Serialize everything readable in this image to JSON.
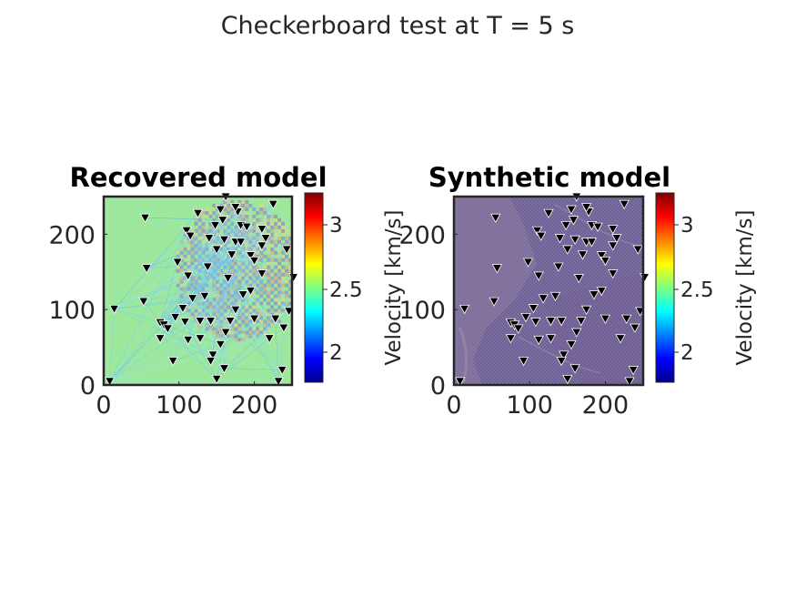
{
  "figure": {
    "suptitle": "Checkerboard test at T = 5 s"
  },
  "colorbar": {
    "colormap": "jet",
    "range": [
      1.75,
      3.2
    ],
    "ticks": [
      "2",
      "2.5",
      "3"
    ],
    "label": "Velocity [km/s]"
  },
  "station_marker": {
    "shape": "inverted-triangle",
    "fill": "#000000",
    "edge": "#ffffff"
  },
  "chart_data": [
    {
      "type": "heatmap",
      "title": "Recovered model",
      "xlim": [
        0,
        250
      ],
      "ylim": [
        0,
        250
      ],
      "xticks": [
        "0",
        "100",
        "200"
      ],
      "yticks": [
        "0",
        "100",
        "200"
      ],
      "background_velocity": 2.35,
      "stations": [
        [
          8,
          5
        ],
        [
          14,
          101
        ],
        [
          55,
          222
        ],
        [
          57,
          155
        ],
        [
          53,
          111
        ],
        [
          75,
          83
        ],
        [
          80,
          80
        ],
        [
          85,
          75
        ],
        [
          75,
          62
        ],
        [
          92,
          32
        ],
        [
          110,
          205
        ],
        [
          115,
          198
        ],
        [
          125,
          228
        ],
        [
          98,
          163
        ],
        [
          112,
          145
        ],
        [
          118,
          115
        ],
        [
          105,
          102
        ],
        [
          108,
          84
        ],
        [
          128,
          85
        ],
        [
          142,
          85
        ],
        [
          134,
          118
        ],
        [
          138,
          157
        ],
        [
          140,
          195
        ],
        [
          150,
          180
        ],
        [
          155,
          233
        ],
        [
          158,
          219
        ],
        [
          148,
          212
        ],
        [
          160,
          193
        ],
        [
          165,
          142
        ],
        [
          170,
          173
        ],
        [
          175,
          190
        ],
        [
          182,
          190
        ],
        [
          178,
          230
        ],
        [
          175,
          236
        ],
        [
          182,
          212
        ],
        [
          190,
          210
        ],
        [
          195,
          172
        ],
        [
          210,
          207
        ],
        [
          215,
          195
        ],
        [
          210,
          185
        ],
        [
          225,
          240
        ],
        [
          243,
          180
        ],
        [
          252,
          143
        ],
        [
          246,
          98
        ],
        [
          239,
          76
        ],
        [
          228,
          88
        ],
        [
          232,
          5
        ],
        [
          237,
          20
        ],
        [
          200,
          165
        ],
        [
          210,
          148
        ],
        [
          195,
          125
        ],
        [
          185,
          120
        ],
        [
          175,
          100
        ],
        [
          168,
          85
        ],
        [
          162,
          70
        ],
        [
          155,
          54
        ],
        [
          145,
          40
        ],
        [
          142,
          32
        ],
        [
          160,
          22
        ],
        [
          150,
          8
        ],
        [
          128,
          62
        ],
        [
          95,
          90
        ],
        [
          112,
          60
        ],
        [
          200,
          88
        ],
        [
          220,
          62
        ],
        [
          162,
          250
        ]
      ]
    },
    {
      "type": "heatmap",
      "title": "Synthetic model",
      "xlim": [
        0,
        250
      ],
      "ylim": [
        0,
        250
      ],
      "xticks": [
        "0",
        "100",
        "200"
      ],
      "yticks": [
        "0",
        "100",
        "200"
      ],
      "background_velocity": 2.5,
      "stations": [
        [
          8,
          5
        ],
        [
          14,
          101
        ],
        [
          55,
          222
        ],
        [
          57,
          155
        ],
        [
          53,
          111
        ],
        [
          75,
          83
        ],
        [
          80,
          80
        ],
        [
          85,
          75
        ],
        [
          75,
          62
        ],
        [
          92,
          32
        ],
        [
          110,
          205
        ],
        [
          115,
          198
        ],
        [
          125,
          228
        ],
        [
          98,
          163
        ],
        [
          112,
          145
        ],
        [
          118,
          115
        ],
        [
          105,
          102
        ],
        [
          108,
          84
        ],
        [
          128,
          85
        ],
        [
          142,
          85
        ],
        [
          134,
          118
        ],
        [
          138,
          157
        ],
        [
          140,
          195
        ],
        [
          150,
          180
        ],
        [
          155,
          233
        ],
        [
          158,
          219
        ],
        [
          148,
          212
        ],
        [
          160,
          193
        ],
        [
          165,
          142
        ],
        [
          170,
          173
        ],
        [
          175,
          190
        ],
        [
          182,
          190
        ],
        [
          178,
          230
        ],
        [
          175,
          236
        ],
        [
          182,
          212
        ],
        [
          190,
          210
        ],
        [
          195,
          172
        ],
        [
          210,
          207
        ],
        [
          215,
          195
        ],
        [
          210,
          185
        ],
        [
          225,
          240
        ],
        [
          243,
          180
        ],
        [
          252,
          143
        ],
        [
          246,
          98
        ],
        [
          239,
          76
        ],
        [
          228,
          88
        ],
        [
          232,
          5
        ],
        [
          237,
          20
        ],
        [
          200,
          165
        ],
        [
          210,
          148
        ],
        [
          195,
          125
        ],
        [
          185,
          120
        ],
        [
          175,
          100
        ],
        [
          168,
          85
        ],
        [
          162,
          70
        ],
        [
          155,
          54
        ],
        [
          145,
          40
        ],
        [
          142,
          32
        ],
        [
          160,
          22
        ],
        [
          150,
          8
        ],
        [
          128,
          62
        ],
        [
          95,
          90
        ],
        [
          112,
          60
        ],
        [
          200,
          88
        ],
        [
          220,
          62
        ],
        [
          162,
          250
        ]
      ]
    }
  ]
}
